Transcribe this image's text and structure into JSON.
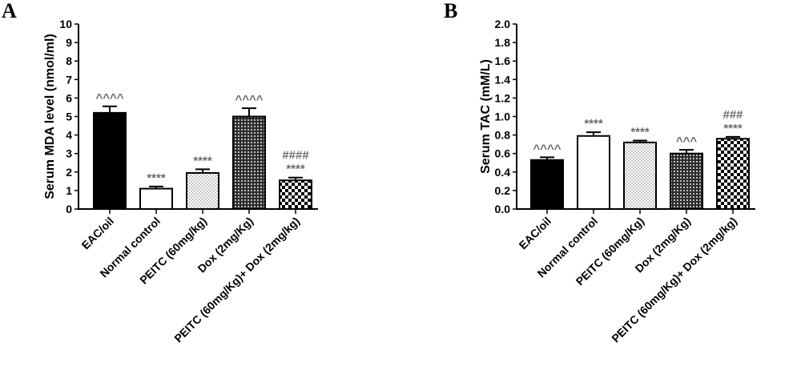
{
  "chart_data": [
    {
      "panel": "A",
      "type": "bar",
      "title": "",
      "xlabel": "",
      "ylabel": "Serum MDA level (nmol/ml)",
      "ylim": [
        0,
        10
      ],
      "yticks": [
        "0",
        "1",
        "2",
        "3",
        "4",
        "5",
        "6",
        "7",
        "8",
        "9",
        "10"
      ],
      "grid": false,
      "categories": [
        "EAC/oil",
        "Normal control",
        "PEITC (60mg/kg)",
        "Dox (2mg/Kg)",
        "PEITC (60mg/Kg)+ Dox (2mg/kg)"
      ],
      "values": [
        5.2,
        1.1,
        1.95,
        5.0,
        1.55
      ],
      "errors": [
        0.35,
        0.12,
        0.2,
        0.45,
        0.15
      ],
      "patterns": [
        "solid",
        "white",
        "dots",
        "crosshatch",
        "checker"
      ],
      "annotations": [
        [
          "^^^^"
        ],
        [
          "****"
        ],
        [
          "****"
        ],
        [
          "^^^^"
        ],
        [
          "####",
          "****"
        ]
      ]
    },
    {
      "panel": "B",
      "type": "bar",
      "title": "",
      "xlabel": "",
      "ylabel": "Serum TAC (mM/L)",
      "ylim": [
        0,
        2.0
      ],
      "yticks": [
        "0.0",
        "0.2",
        "0.4",
        "0.6",
        "0.8",
        "1.0",
        "1.2",
        "1.4",
        "1.6",
        "1.8",
        "2.0"
      ],
      "grid": false,
      "categories": [
        "EAC/oil",
        "Normal control",
        "PEITC (60mg/Kg)",
        "Dox (2mg/Kg)",
        "PEITC (60mg/Kg)+ Dox (2mg/kg)"
      ],
      "values": [
        0.53,
        0.79,
        0.72,
        0.6,
        0.76
      ],
      "errors": [
        0.03,
        0.04,
        0.02,
        0.04,
        0.02
      ],
      "patterns": [
        "solid",
        "white",
        "dots",
        "crosshatch",
        "checker"
      ],
      "annotations": [
        [
          "^^^^"
        ],
        [
          "****"
        ],
        [
          "****"
        ],
        [
          "^^^"
        ],
        [
          "###",
          "****"
        ]
      ]
    }
  ],
  "colors": {
    "bar_fill": "#000000",
    "significance_text": "#6b6b6b"
  }
}
